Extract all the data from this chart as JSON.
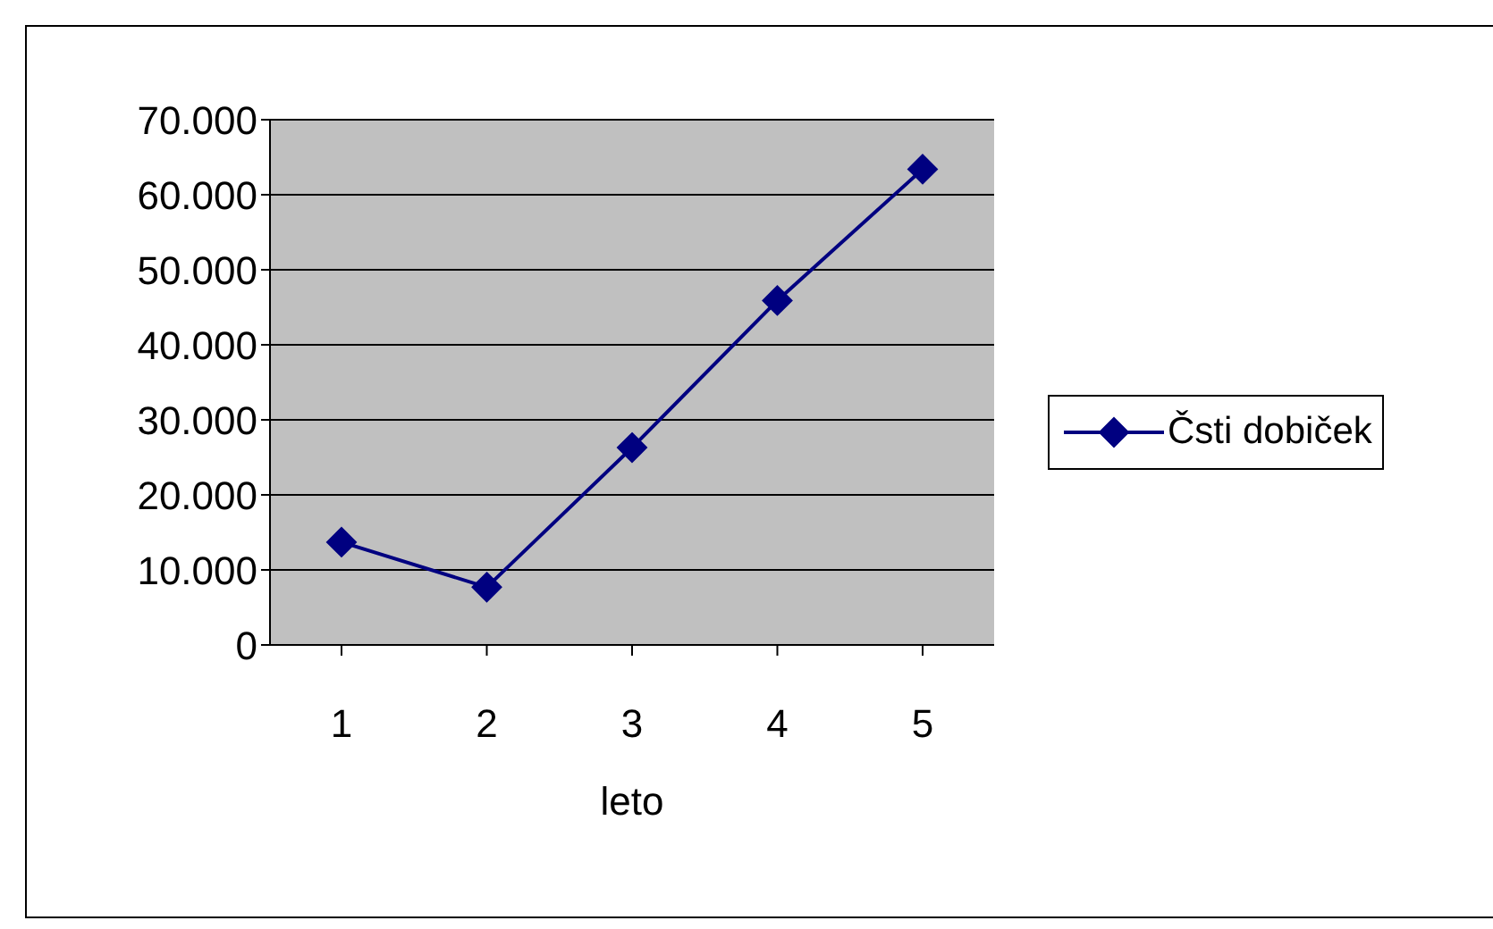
{
  "chart_data": {
    "type": "line",
    "xlabel": "leto",
    "categories": [
      "1",
      "2",
      "3",
      "4",
      "5"
    ],
    "series": [
      {
        "name": "Čsti dobiček",
        "color": "#000080",
        "values": [
          13700,
          7700,
          26300,
          45900,
          63400
        ]
      }
    ],
    "ylim": [
      0,
      70000
    ],
    "yticks": [
      0,
      {
        "value": 10000,
        "label": "10.000"
      },
      {
        "value": 20000,
        "label": "20.000"
      },
      {
        "value": 30000,
        "label": "30.000"
      },
      {
        "value": 40000,
        "label": "40.000"
      },
      {
        "value": 50000,
        "label": "50.000"
      },
      {
        "value": 60000,
        "label": "60.000"
      },
      {
        "value": 70000,
        "label": "70.000"
      }
    ],
    "grid": "y",
    "legend": "right",
    "marker": "diamond",
    "line_style": "solid"
  }
}
